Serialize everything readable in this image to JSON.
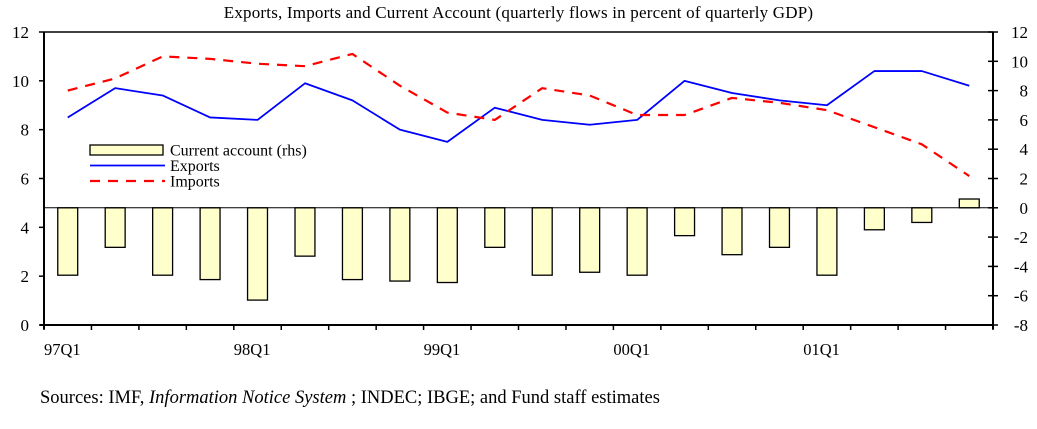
{
  "chart_data": {
    "type": "bar+line",
    "title": "Exports, Imports and Current Account  (quarterly flows in percent of quarterly GDP)",
    "xlabel": "",
    "ylabel_left": "",
    "ylabel_right": "",
    "categories": [
      "97Q1",
      "97Q2",
      "97Q3",
      "97Q4",
      "98Q1",
      "98Q2",
      "98Q3",
      "98Q4",
      "99Q1",
      "99Q2",
      "99Q3",
      "99Q4",
      "00Q1",
      "00Q2",
      "00Q3",
      "00Q4",
      "01Q1",
      "01Q2",
      "01Q3",
      "01Q4"
    ],
    "x_tick_labels": [
      "97Q1",
      "98Q1",
      "99Q1",
      "00Q1",
      "01Q1"
    ],
    "left_axis": {
      "ylim": [
        0,
        12
      ],
      "ticks": [
        0,
        2,
        4,
        6,
        8,
        10,
        12
      ]
    },
    "right_axis": {
      "ylim": [
        -8,
        12
      ],
      "ticks": [
        -8,
        -6,
        -4,
        -2,
        0,
        2,
        4,
        6,
        8,
        10,
        12
      ]
    },
    "grid": false,
    "legend": {
      "placement": "upper-left inside",
      "entries": [
        {
          "name": "Current account (rhs)",
          "style": "bar"
        },
        {
          "name": "Exports",
          "style": "solid-line"
        },
        {
          "name": "Imports",
          "style": "dashed-line"
        }
      ]
    },
    "series": [
      {
        "name": "Current account (rhs)",
        "type": "bar",
        "axis": "right",
        "color": "#FFFFCC",
        "values": [
          -4.6,
          -2.7,
          -4.6,
          -4.9,
          -6.3,
          -3.3,
          -4.9,
          -5.0,
          -5.1,
          -2.7,
          -4.6,
          -4.4,
          -4.6,
          -1.9,
          -3.2,
          -2.7,
          -4.6,
          -1.5,
          -1.0,
          0.6
        ]
      },
      {
        "name": "Exports",
        "type": "line",
        "axis": "left",
        "color": "#0000FF",
        "values": [
          8.5,
          9.7,
          9.4,
          8.5,
          8.4,
          9.9,
          9.2,
          8.0,
          7.5,
          8.9,
          8.4,
          8.2,
          8.4,
          10.0,
          9.5,
          9.2,
          9.0,
          10.4,
          10.4,
          9.8
        ]
      },
      {
        "name": "Imports",
        "type": "line",
        "axis": "left",
        "color": "#FF0000",
        "values": [
          9.6,
          10.1,
          11.0,
          10.9,
          10.7,
          10.6,
          11.1,
          9.8,
          8.7,
          8.4,
          9.7,
          9.4,
          8.6,
          8.6,
          9.3,
          9.1,
          8.8,
          8.1,
          7.4,
          6.1
        ]
      }
    ]
  },
  "source": {
    "prefix": "Sources: IMF, ",
    "italic": "Information Notice System",
    "suffix": " ; INDEC; IBGE; and Fund staff estimates"
  }
}
